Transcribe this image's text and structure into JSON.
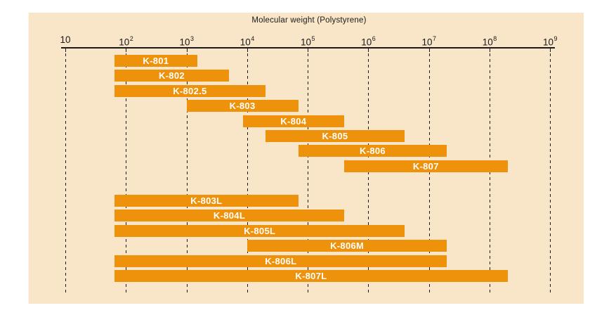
{
  "page": {
    "background_color": "#FFFFFF"
  },
  "chart_data": {
    "type": "bar",
    "subtype": "horizontal-range-bars",
    "title": "Molecular weight (Polystyrene)",
    "x_scale": "log10",
    "xlim": [
      10,
      1000000000
    ],
    "x_ticks": [
      {
        "value": 10,
        "base": "10",
        "sup": ""
      },
      {
        "value": 100,
        "base": "10",
        "sup": "2"
      },
      {
        "value": 1000,
        "base": "10",
        "sup": "3"
      },
      {
        "value": 10000,
        "base": "10",
        "sup": "4"
      },
      {
        "value": 100000,
        "base": "10",
        "sup": "5"
      },
      {
        "value": 1000000,
        "base": "10",
        "sup": "6"
      },
      {
        "value": 10000000,
        "base": "10",
        "sup": "7"
      },
      {
        "value": 100000000,
        "base": "10",
        "sup": "8"
      },
      {
        "value": 1000000000,
        "base": "10",
        "sup": "9"
      }
    ],
    "grid": "vertical-dashed",
    "legend": "none",
    "plot_background": "#F9E5C7",
    "bar_color": "#EF920B",
    "axis_color": "#1A1A1A",
    "bar_label_color": "#FFFFFF",
    "groups": [
      {
        "bars": [
          {
            "label": "K-801",
            "range": [
              65,
              1500
            ]
          },
          {
            "label": "K-802",
            "range": [
              65,
              5000
            ]
          },
          {
            "label": "K-802.5",
            "range": [
              65,
              20000
            ]
          },
          {
            "label": "K-803",
            "range": [
              1000,
              70000
            ]
          },
          {
            "label": "K-804",
            "range": [
              8500,
              400000
            ]
          },
          {
            "label": "K-805",
            "range": [
              20000,
              4000000
            ]
          },
          {
            "label": "K-806",
            "range": [
              70000,
              20000000
            ]
          },
          {
            "label": "K-807",
            "range": [
              400000,
              200000000
            ]
          }
        ]
      },
      {
        "bars": [
          {
            "label": "K-803L",
            "range": [
              65,
              70000
            ]
          },
          {
            "label": "K-804L",
            "range": [
              65,
              400000
            ]
          },
          {
            "label": "K-805L",
            "range": [
              65,
              4000000
            ]
          },
          {
            "label": "K-806M",
            "range": [
              10000,
              20000000
            ]
          },
          {
            "label": "K-806L",
            "range": [
              65,
              20000000
            ]
          },
          {
            "label": "K-807L",
            "range": [
              65,
              200000000
            ]
          }
        ]
      }
    ]
  }
}
